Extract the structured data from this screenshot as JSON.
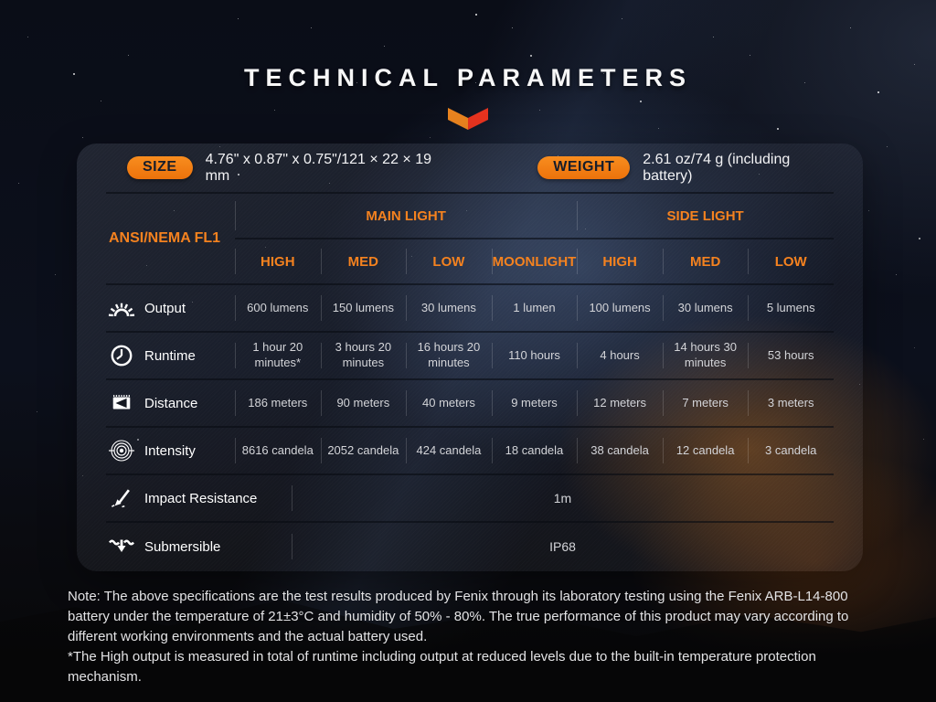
{
  "title": "TECHNICAL PARAMETERS",
  "specs": {
    "size_label": "SIZE",
    "size_value": "4.76\" x 0.87\" x 0.75\"/121 × 22 × 19 mm",
    "weight_label": "WEIGHT",
    "weight_value": "2.61 oz/74 g (including battery)"
  },
  "table": {
    "corner_label": "ANSI/NEMA FL1",
    "groups": [
      {
        "label": "MAIN LIGHT"
      },
      {
        "label": "SIDE LIGHT"
      }
    ],
    "columns": [
      "HIGH",
      "MED",
      "LOW",
      "MOONLIGHT",
      "HIGH",
      "MED",
      "LOW"
    ],
    "rows": [
      {
        "label": "Output",
        "icon": "sunburst-icon",
        "values": [
          "600 lumens",
          "150 lumens",
          "30 lumens",
          "1 lumen",
          "100 lumens",
          "30 lumens",
          "5 lumens"
        ]
      },
      {
        "label": "Runtime",
        "icon": "clock-icon",
        "values": [
          "1 hour 20 minutes*",
          "3 hours 20 minutes",
          "16 hours 20 minutes",
          "110 hours",
          "4 hours",
          "14 hours 30 minutes",
          "53 hours"
        ]
      },
      {
        "label": "Distance",
        "icon": "distance-icon",
        "values": [
          "186 meters",
          "90 meters",
          "40 meters",
          "9 meters",
          "12 meters",
          "7 meters",
          "3 meters"
        ]
      },
      {
        "label": "Intensity",
        "icon": "intensity-icon",
        "values": [
          "8616 candela",
          "2052 candela",
          "424 candela",
          "18 candela",
          "38 candela",
          "12 candela",
          "3 candela"
        ]
      }
    ],
    "merged_rows": [
      {
        "label": "Impact Resistance",
        "icon": "impact-icon",
        "value": "1m"
      },
      {
        "label": "Submersible",
        "icon": "submersible-icon",
        "value": "IP68"
      }
    ]
  },
  "notes": {
    "main": "Note: The above specifications are the test results produced by Fenix through its laboratory testing using the Fenix ARB-L14-800 battery under the temperature of 21±3°C and humidity of 50% - 80%. The true performance of this product may vary according to different working environments and the actual battery used.",
    "asterisk": "*The High output is measured in total of runtime including output at reduced levels due to the built-in temperature protection mechanism."
  },
  "colors": {
    "accent": "#f5821f",
    "badge_orange": "#f0800f",
    "chevron_left": "#e8831f",
    "chevron_right": "#e5331f"
  }
}
